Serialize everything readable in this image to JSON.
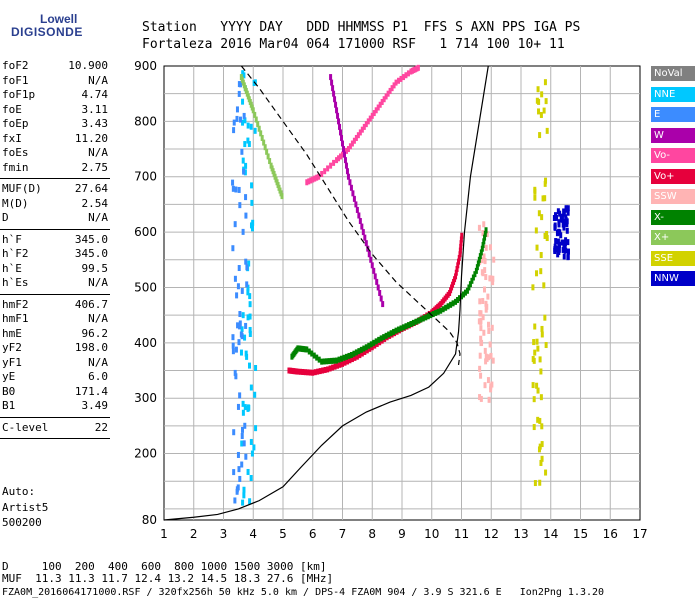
{
  "logo": {
    "line1": "Lowell",
    "line2": "DIGISONDE"
  },
  "header": {
    "line1": "Station   YYYY DAY   DDD HHMMSS P1  FFS S AXN PPS IGA PS",
    "line2": "Fortaleza 2016 Mar04 064 171000 RSF   1 714 100 10+ 11"
  },
  "params": {
    "group1": [
      {
        "label": "foF2",
        "value": "10.900"
      },
      {
        "label": "foF1",
        "value": "N/A"
      },
      {
        "label": "foF1p",
        "value": "4.74"
      },
      {
        "label": "foE",
        "value": "3.11"
      },
      {
        "label": "foEp",
        "value": "3.43"
      },
      {
        "label": "fxI",
        "value": "11.20"
      },
      {
        "label": "foEs",
        "value": "N/A"
      },
      {
        "label": "fmin",
        "value": "2.75"
      }
    ],
    "group2": [
      {
        "label": "MUF(D)",
        "value": "27.64"
      },
      {
        "label": "M(D)",
        "value": "2.54"
      },
      {
        "label": "D",
        "value": "N/A"
      }
    ],
    "group3": [
      {
        "label": "h`F",
        "value": "345.0"
      },
      {
        "label": "h`F2",
        "value": "345.0"
      },
      {
        "label": "h`E",
        "value": "99.5"
      },
      {
        "label": "h`Es",
        "value": "N/A"
      }
    ],
    "group4": [
      {
        "label": "hmF2",
        "value": "406.7"
      },
      {
        "label": "hmF1",
        "value": "N/A"
      },
      {
        "label": "hmE",
        "value": "96.2"
      },
      {
        "label": "yF2",
        "value": "198.0"
      },
      {
        "label": "yF1",
        "value": "N/A"
      },
      {
        "label": "yE",
        "value": "6.0"
      },
      {
        "label": "B0",
        "value": "171.4"
      },
      {
        "label": "B1",
        "value": "3.49"
      }
    ],
    "group5": [
      {
        "label": "C-level",
        "value": "22"
      }
    ]
  },
  "autoscale": {
    "line1": "Auto:",
    "line2": "Artist5",
    "line3": "500200"
  },
  "legend": [
    {
      "label": "NoVal",
      "bg": "#808080",
      "fg": "#ffffff"
    },
    {
      "label": "NNE",
      "bg": "#00c8ff",
      "fg": "#ffffff"
    },
    {
      "label": "E",
      "bg": "#3c8cff",
      "fg": "#ffffff"
    },
    {
      "label": "W",
      "bg": "#aa00aa",
      "fg": "#ffffff"
    },
    {
      "label": "Vo-",
      "bg": "#ff46a0",
      "fg": "#ffffff"
    },
    {
      "label": "Vo+",
      "bg": "#e6003c",
      "fg": "#ffffff"
    },
    {
      "label": "SSW",
      "bg": "#ffb4b4",
      "fg": "#ffffff"
    },
    {
      "label": "X-",
      "bg": "#008200",
      "fg": "#ffffff"
    },
    {
      "label": "X+",
      "bg": "#8cc85a",
      "fg": "#ffffff"
    },
    {
      "label": "SSE",
      "bg": "#d2d200",
      "fg": "#ffffff"
    },
    {
      "label": "NNW",
      "bg": "#0000c8",
      "fg": "#ffffff"
    }
  ],
  "footer": {
    "d_row": "D     100  200  400  600  800 1000 1500 3000 [km]",
    "muf_row": "MUF  11.3 11.3 11.7 12.4 13.2 14.5 18.3 27.6 [MHz]",
    "info_row": "FZA0M_2016064171000.RSF / 320fx256h 50 kHz 5.0 km / DPS-4 FZA0M 904 / 3.9 S 321.6 E   Ion2Png 1.3.20"
  },
  "chart_data": {
    "type": "scatter",
    "title": "",
    "xlabel": "",
    "ylabel": "",
    "xlim": [
      1,
      17
    ],
    "ylim": [
      80,
      900
    ],
    "x_ticks": [
      1,
      2,
      3,
      4,
      5,
      6,
      7,
      8,
      9,
      10,
      11,
      12,
      13,
      14,
      15,
      16,
      17
    ],
    "y_ticks": [
      80,
      200,
      300,
      400,
      500,
      600,
      700,
      800,
      900
    ],
    "y_grid_step": 50,
    "grid": true,
    "legend_position": "right",
    "series": [
      {
        "name": "Vo+",
        "color": "#e6003c",
        "points": [
          [
            5.2,
            350
          ],
          [
            5.5,
            348
          ],
          [
            6,
            346
          ],
          [
            6.5,
            352
          ],
          [
            7,
            362
          ],
          [
            7.5,
            375
          ],
          [
            8,
            392
          ],
          [
            8.5,
            410
          ],
          [
            9,
            425
          ],
          [
            9.5,
            438
          ],
          [
            10,
            455
          ],
          [
            10.3,
            470
          ],
          [
            10.6,
            490
          ],
          [
            10.8,
            520
          ],
          [
            10.95,
            560
          ],
          [
            11.02,
            600
          ]
        ]
      },
      {
        "name": "X-",
        "color": "#008200",
        "points": [
          [
            5.3,
            375
          ],
          [
            5.5,
            390
          ],
          [
            5.8,
            388
          ],
          [
            6.3,
            366
          ],
          [
            6.8,
            368
          ],
          [
            7.3,
            378
          ],
          [
            7.8,
            392
          ],
          [
            8.3,
            408
          ],
          [
            8.8,
            422
          ],
          [
            9.3,
            434
          ],
          [
            9.8,
            446
          ],
          [
            10.3,
            458
          ],
          [
            10.8,
            474
          ],
          [
            11.2,
            494
          ],
          [
            11.5,
            530
          ],
          [
            11.7,
            570
          ],
          [
            11.85,
            610
          ]
        ]
      },
      {
        "name": "X+",
        "color": "#8cc85a",
        "points": [
          [
            3.6,
            880
          ],
          [
            3.8,
            850
          ],
          [
            4.0,
            820
          ],
          [
            4.3,
            770
          ],
          [
            4.6,
            720
          ],
          [
            4.8,
            690
          ],
          [
            5.0,
            660
          ]
        ]
      },
      {
        "name": "Vo-",
        "color": "#ff46a0",
        "points": [
          [
            5.8,
            690
          ],
          [
            6.2,
            700
          ],
          [
            6.8,
            730
          ],
          [
            7.2,
            750
          ],
          [
            7.6,
            780
          ],
          [
            8.0,
            810
          ],
          [
            8.4,
            840
          ],
          [
            8.8,
            870
          ],
          [
            9.3,
            890
          ],
          [
            9.6,
            898
          ]
        ]
      },
      {
        "name": "W",
        "color": "#aa00aa",
        "points": [
          [
            6.6,
            880
          ],
          [
            6.8,
            820
          ],
          [
            7.0,
            760
          ],
          [
            7.2,
            700
          ],
          [
            7.5,
            640
          ],
          [
            7.8,
            580
          ],
          [
            8.1,
            520
          ],
          [
            8.4,
            460
          ]
        ]
      }
    ],
    "model_curve_solid": {
      "x": [
        1,
        2,
        2.8,
        3.5,
        4.2,
        5,
        5.6,
        6.3,
        7,
        7.8,
        8.6,
        9.3,
        9.9,
        10.4,
        10.8,
        10.9,
        10.95,
        11,
        11.1,
        11.3,
        11.6,
        11.9
      ],
      "y": [
        80,
        85,
        90,
        100,
        115,
        140,
        175,
        215,
        250,
        275,
        293,
        305,
        320,
        345,
        380,
        420,
        460,
        520,
        600,
        700,
        800,
        900
      ]
    },
    "model_curve_dashed": {
      "x": [
        3.6,
        4.2,
        5,
        5.8,
        6.5,
        7.2,
        8,
        8.8,
        9.6,
        10.2,
        10.6,
        10.85,
        10.95,
        10.9
      ],
      "y": [
        900,
        860,
        800,
        740,
        680,
        620,
        560,
        510,
        470,
        440,
        420,
        400,
        380,
        360
      ]
    },
    "oblique_echo_bands": [
      {
        "name": "NNE",
        "color": "#00c8ff",
        "x": 3.8,
        "y_range": [
          100,
          900
        ]
      },
      {
        "name": "E",
        "color": "#3c8cff",
        "x": 3.5,
        "y_range": [
          120,
          880
        ]
      },
      {
        "name": "SSE",
        "color": "#d2d200",
        "x": 13.6,
        "y_range": [
          150,
          880
        ]
      },
      {
        "name": "SSW",
        "color": "#ffb4b4",
        "x": 11.8,
        "y_range": [
          300,
          620
        ]
      },
      {
        "name": "NNW",
        "color": "#0000c8",
        "x": 14.3,
        "y_range": [
          560,
          650
        ]
      }
    ]
  }
}
